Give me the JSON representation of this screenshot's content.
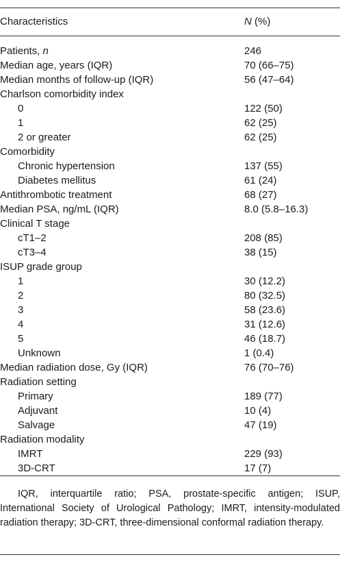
{
  "header": {
    "characteristics": "Characteristics",
    "n_label": "N",
    "pct_label": " (%)"
  },
  "rows": [
    {
      "label": "Patients, ",
      "label_italic": "n",
      "value": "246",
      "indent": false
    },
    {
      "label": "Median age, years (IQR)",
      "value": "70 (66–75)",
      "indent": false
    },
    {
      "label": "Median months of follow-up (IQR)",
      "value": "56 (47–64)",
      "indent": false
    },
    {
      "label": "Charlson comorbidity index",
      "value": "",
      "indent": false
    },
    {
      "label": "0",
      "value": "122 (50)",
      "indent": true
    },
    {
      "label": "1",
      "value": "62 (25)",
      "indent": true
    },
    {
      "label": "2 or greater",
      "value": "62 (25)",
      "indent": true
    },
    {
      "label": "Comorbidity",
      "value": "",
      "indent": false
    },
    {
      "label": "Chronic hypertension",
      "value": "137 (55)",
      "indent": true
    },
    {
      "label": "Diabetes mellitus",
      "value": "61 (24)",
      "indent": true
    },
    {
      "label": "Antithrombotic treatment",
      "value": "68 (27)",
      "indent": false
    },
    {
      "label": "Median PSA, ng/mL (IQR)",
      "value": "8.0 (5.8–16.3)",
      "indent": false
    },
    {
      "label": "Clinical T stage",
      "value": "",
      "indent": false
    },
    {
      "label": "cT1–2",
      "value": "208 (85)",
      "indent": true
    },
    {
      "label": "cT3–4",
      "value": "38 (15)",
      "indent": true
    },
    {
      "label": "ISUP grade group",
      "value": "",
      "indent": false
    },
    {
      "label": "1",
      "value": "30 (12.2)",
      "indent": true
    },
    {
      "label": "2",
      "value": "80 (32.5)",
      "indent": true
    },
    {
      "label": "3",
      "value": "58 (23.6)",
      "indent": true
    },
    {
      "label": "4",
      "value": "31 (12.6)",
      "indent": true
    },
    {
      "label": "5",
      "value": "46 (18.7)",
      "indent": true
    },
    {
      "label": "Unknown",
      "value": "1 (0.4)",
      "indent": true
    },
    {
      "label": "Median radiation dose, Gy (IQR)",
      "value": "76 (70–76)",
      "indent": false
    },
    {
      "label": "Radiation setting",
      "value": "",
      "indent": false
    },
    {
      "label": "Primary",
      "value": "189 (77)",
      "indent": true
    },
    {
      "label": "Adjuvant",
      "value": "10 (4)",
      "indent": true
    },
    {
      "label": "Salvage",
      "value": "47 (19)",
      "indent": true
    },
    {
      "label": "Radiation modality",
      "value": "",
      "indent": false
    },
    {
      "label": "IMRT",
      "value": "229 (93)",
      "indent": true
    },
    {
      "label": "3D-CRT",
      "value": "17 (7)",
      "indent": true
    }
  ],
  "footnote": "IQR, interquartile ratio; PSA, prostate-specific antigen; ISUP, International Society of Urological Pathology; IMRT, intensity-modulated radiation therapy; 3D-CRT, three-dimensional conformal radiation therapy."
}
